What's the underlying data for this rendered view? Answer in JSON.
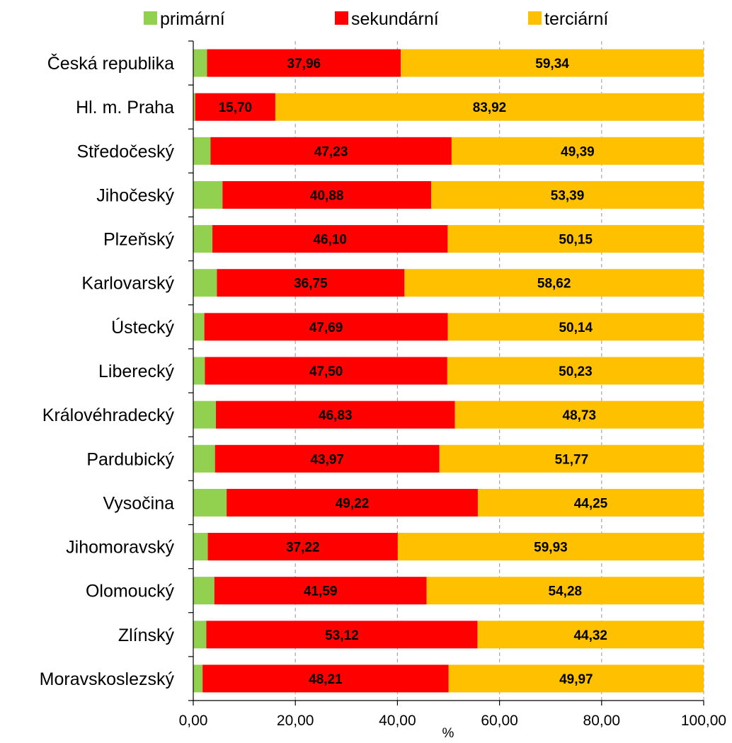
{
  "chart_data": {
    "type": "bar",
    "orientation": "horizontal",
    "stacked": true,
    "title": "",
    "xlabel": "%",
    "ylabel": "",
    "xlim": [
      0,
      100
    ],
    "x_ticks": [
      "0,00",
      "20,00",
      "40,00",
      "60,00",
      "80,00",
      "100,00"
    ],
    "grid": true,
    "legend_position": "top",
    "categories": [
      "Česká republika",
      "Hl. m. Praha",
      "Středočeský",
      "Jihočeský",
      "Plzeňský",
      "Karlovarský",
      "Ústecký",
      "Liberecký",
      "Královéhradecký",
      "Pardubický",
      "Vysočina",
      "Jihomoravský",
      "Olomoucký",
      "Zlínský",
      "Moravskoslezský"
    ],
    "series": [
      {
        "name": "primární",
        "color": "#92D050",
        "values": [
          2.7,
          0.38,
          3.38,
          5.73,
          3.75,
          4.63,
          2.17,
          2.27,
          4.44,
          4.26,
          6.53,
          2.85,
          4.13,
          2.56,
          1.82
        ],
        "labels": [
          "",
          "",
          "",
          "",
          "",
          "",
          "",
          "",
          "",
          "",
          "",
          "",
          "",
          "",
          ""
        ]
      },
      {
        "name": "sekundární",
        "color": "#FF0000",
        "values": [
          37.96,
          15.7,
          47.23,
          40.88,
          46.1,
          36.75,
          47.69,
          47.5,
          46.83,
          43.97,
          49.22,
          37.22,
          41.59,
          53.12,
          48.21
        ],
        "labels": [
          "37,96",
          "15,70",
          "47,23",
          "40,88",
          "46,10",
          "36,75",
          "47,69",
          "47,50",
          "46,83",
          "43,97",
          "49,22",
          "37,22",
          "41,59",
          "53,12",
          "48,21"
        ]
      },
      {
        "name": "terciární",
        "color": "#FFC000",
        "values": [
          59.34,
          83.92,
          49.39,
          53.39,
          50.15,
          58.62,
          50.14,
          50.23,
          48.73,
          51.77,
          44.25,
          59.93,
          54.28,
          44.32,
          49.97
        ],
        "labels": [
          "59,34",
          "83,92",
          "49,39",
          "53,39",
          "50,15",
          "58,62",
          "50,14",
          "50,23",
          "48,73",
          "51,77",
          "44,25",
          "59,93",
          "54,28",
          "44,32",
          "49,97"
        ]
      }
    ]
  }
}
